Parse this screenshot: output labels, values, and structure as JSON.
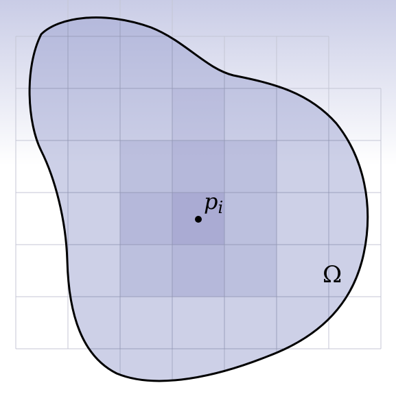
{
  "labels": {
    "point": "p",
    "point_subscript": "i",
    "region": "Ω"
  }
}
